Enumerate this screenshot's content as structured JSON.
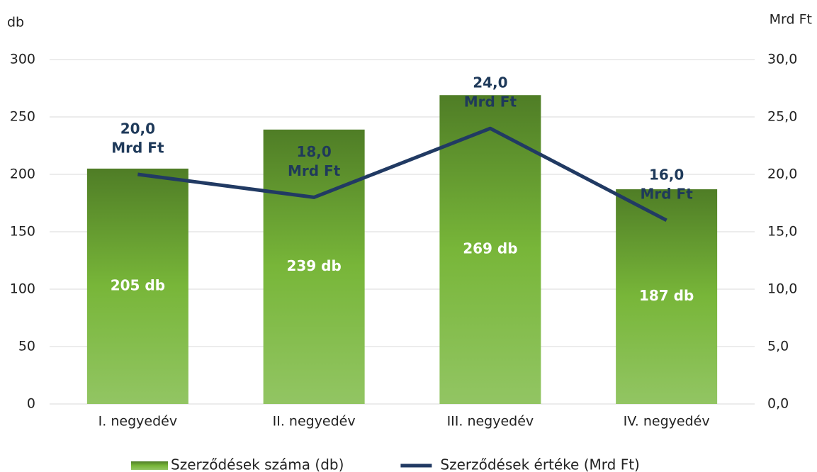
{
  "chart_data": {
    "type": "combo",
    "y_label": "db",
    "y2_label": "Mrd Ft",
    "categories": [
      "I. negyedév",
      "II. negyedév",
      "III. negyedév",
      "IV. negyedév"
    ],
    "series": [
      {
        "name": "Szerződések száma (db)",
        "type": "bar",
        "color": [
          "#4f7d26",
          "#78b639",
          "#92c563"
        ],
        "values": [
          205,
          239,
          269,
          187
        ],
        "value_labels": [
          "205 db",
          "239 db",
          "269 db",
          "187 db"
        ]
      },
      {
        "name": "Szerződések értéke (Mrd Ft)",
        "type": "line",
        "axis": "y2",
        "color": "#213a63",
        "values": [
          20,
          18,
          24,
          16
        ],
        "value_labels": [
          [
            "20,0",
            "Mrd Ft"
          ],
          [
            "18,0",
            "Mrd Ft"
          ],
          [
            "24,0",
            "Mrd Ft"
          ],
          [
            "16,0",
            "Mrd Ft"
          ]
        ]
      }
    ],
    "ylim": [
      0,
      300
    ],
    "yticks": [
      0,
      50,
      100,
      150,
      200,
      250,
      300
    ],
    "y2lim": [
      0,
      30
    ],
    "y2ticks": [
      {
        "value": 0,
        "label": "0,0"
      },
      {
        "value": 5,
        "label": "5,0"
      },
      {
        "value": 10,
        "label": "10,0"
      },
      {
        "value": 15,
        "label": "15,0"
      },
      {
        "value": 20,
        "label": "20,0"
      },
      {
        "value": 25,
        "label": "25,0"
      },
      {
        "value": 30,
        "label": "30,0"
      }
    ],
    "grid": true,
    "legend": "bottom"
  }
}
